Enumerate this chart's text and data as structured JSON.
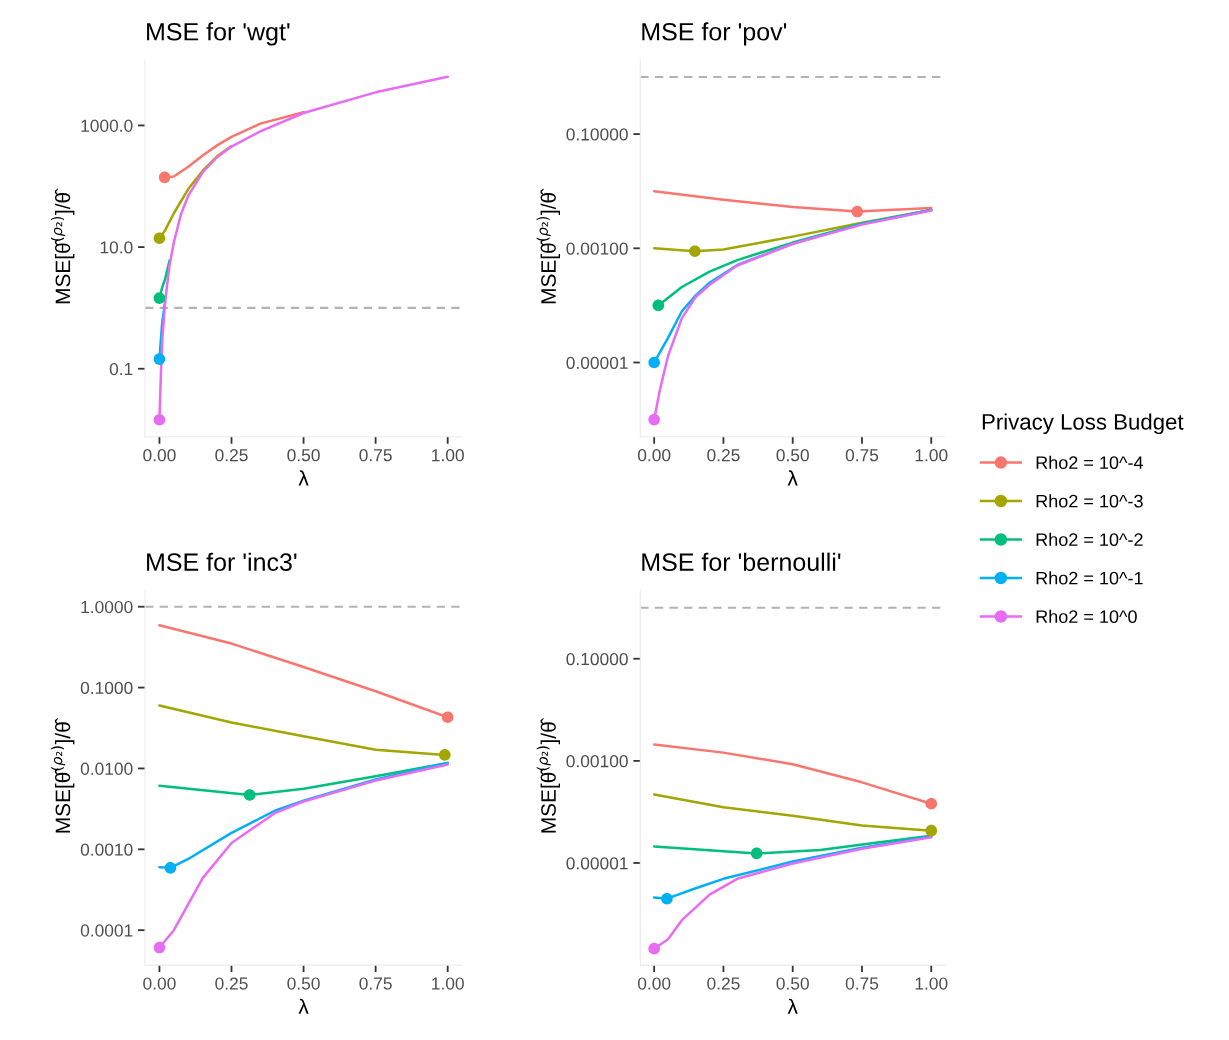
{
  "chart_data": [
    {
      "type": "line",
      "title": "MSE for 'wgt'",
      "xlabel": "λ",
      "ylabel": "MSE[θ̂$^{(ρ₂)}$]/θ̂",
      "log": "y",
      "grid": false,
      "xlim": [
        -0.05,
        1.05
      ],
      "xticks": [
        {
          "value": 0,
          "label": "0.00"
        },
        {
          "value": 0.25,
          "label": "0.25"
        },
        {
          "value": 0.5,
          "label": "0.50"
        },
        {
          "value": 0.75,
          "label": "0.75"
        },
        {
          "value": 1,
          "label": "1.00"
        }
      ],
      "ylim": [
        0.0076,
        12000
      ],
      "yticks": [
        {
          "value": 1000,
          "label": "1000.0"
        },
        {
          "value": 10,
          "label": "10.0"
        },
        0.1
      ],
      "ref_lines": [
        {
          "axis": "y",
          "value": 1,
          "color": "#b3b3b3",
          "line_style": "dashed"
        }
      ],
      "series": [
        {
          "color": "#f8766d",
          "x": [
            0.018,
            0.05,
            0.1,
            0.15,
            0.2,
            0.25,
            0.35,
            0.5
          ],
          "values": [
            140,
            145,
            210,
            320,
            470,
            650,
            1070,
            1650
          ]
        },
        {
          "color": "#a3a500",
          "x": [
            0,
            0.02,
            0.05,
            0.1,
            0.15,
            0.2,
            0.25
          ],
          "values": [
            14,
            19,
            36,
            90,
            180,
            310,
            460
          ]
        },
        {
          "color": "#00bf7d",
          "x": [
            0,
            0.01,
            0.02,
            0.035
          ],
          "values": [
            1.45,
            2.2,
            3,
            6
          ]
        },
        {
          "color": "#00b0f6",
          "x": [
            0,
            0.005,
            0.01,
            0.02
          ],
          "values": [
            0.144,
            0.3,
            0.6,
            1.3
          ]
        },
        {
          "color": "#e76bf3",
          "x": [
            0,
            0.005,
            0.01,
            0.02,
            0.035,
            0.05,
            0.075,
            0.1,
            0.15,
            0.2,
            0.25,
            0.35,
            0.5,
            0.75,
            1
          ],
          "values": [
            0.0145,
            0.08,
            0.3,
            1.3,
            5,
            12,
            35,
            70,
            170,
            300,
            450,
            800,
            1600,
            3500,
            6300
          ]
        },
        {
          "type": "scatter",
          "marker": "circle",
          "x": [
            0.018,
            0,
            0,
            0,
            0
          ],
          "values": [
            140,
            14,
            1.45,
            0.144,
            0.0145
          ],
          "colors": [
            "#f8766d",
            "#a3a500",
            "#00bf7d",
            "#00b0f6",
            "#e76bf3"
          ]
        }
      ]
    },
    {
      "type": "line",
      "title": "MSE for 'pov'",
      "xlabel": "λ",
      "ylabel": "MSE[θ̂$^{(ρ₂)}$]/θ̂",
      "log": "y",
      "grid": false,
      "legend": "right",
      "legend_title": "Privacy Loss Budget",
      "xlim": [
        -0.05,
        1.05
      ],
      "xticks": [
        {
          "value": 0,
          "label": "0.00"
        },
        {
          "value": 0.25,
          "label": "0.25"
        },
        {
          "value": 0.5,
          "label": "0.50"
        },
        {
          "value": 0.75,
          "label": "0.75"
        },
        {
          "value": 1,
          "label": "1.00"
        }
      ],
      "ylim": [
        5e-07,
        2
      ],
      "yticks": [
        {
          "value": 0.1,
          "label": "0.10000"
        },
        {
          "value": 0.001,
          "label": "0.00100"
        },
        {
          "value": 1e-05,
          "label": "0.00001"
        }
      ],
      "ref_lines": [
        {
          "axis": "y",
          "value": 1,
          "color": "#b3b3b3",
          "line_style": "dashed"
        }
      ],
      "series": [
        {
          "name": "Rho2 = 10^-4",
          "color": "#f8766d",
          "x": [
            0,
            0.25,
            0.5,
            0.733,
            1
          ],
          "values": [
            0.01,
            0.0071,
            0.0053,
            0.0044,
            0.0051
          ]
        },
        {
          "name": "Rho2 = 10^-3",
          "color": "#a3a500",
          "x": [
            0,
            0.147,
            0.25,
            0.5,
            0.75,
            1
          ],
          "values": [
            0.001,
            0.00089,
            0.00095,
            0.0016,
            0.0028,
            0.0047
          ]
        },
        {
          "name": "Rho2 = 10^-2",
          "color": "#00bf7d",
          "x": [
            0.015,
            0.1,
            0.2,
            0.3,
            0.5,
            0.75,
            1
          ],
          "values": [
            0.0001,
            0.00021,
            0.00039,
            0.00062,
            0.00126,
            0.0027,
            0.0047
          ]
        },
        {
          "name": "Rho2 = 10^-1",
          "color": "#00b0f6",
          "x": [
            0,
            0.05,
            0.1,
            0.15,
            0.2,
            0.3,
            0.5,
            0.75,
            1
          ],
          "values": [
            1e-05,
            2.7e-05,
            7.9e-05,
            0.00015,
            0.00025,
            0.00051,
            0.0012,
            0.0027,
            0.0047
          ]
        },
        {
          "name": "Rho2 = 10^0",
          "color": "#e76bf3",
          "x": [
            0,
            0.02,
            0.05,
            0.1,
            0.15,
            0.2,
            0.3,
            0.5,
            0.75,
            1
          ],
          "values": [
            1e-06,
            3.2e-06,
            1.3e-05,
            6e-05,
            0.00014,
            0.00023,
            0.0005,
            0.0012,
            0.0026,
            0.0046
          ]
        },
        {
          "type": "scatter",
          "marker": "circle",
          "x": [
            0.733,
            0.147,
            0.015,
            0,
            0
          ],
          "values": [
            0.0044,
            0.00089,
            0.0001,
            1e-05,
            1e-06
          ],
          "colors": [
            "#f8766d",
            "#a3a500",
            "#00bf7d",
            "#00b0f6",
            "#e76bf3"
          ]
        }
      ]
    },
    {
      "type": "line",
      "title": "MSE for 'inc3'",
      "xlabel": "λ",
      "ylabel": "MSE[θ̂$^{(ρ₂)}$]/θ̂",
      "log": "y",
      "grid": false,
      "xlim": [
        -0.05,
        1.05
      ],
      "xticks": [
        {
          "value": 0,
          "label": "0.00"
        },
        {
          "value": 0.25,
          "label": "0.25"
        },
        {
          "value": 0.5,
          "label": "0.50"
        },
        {
          "value": 0.75,
          "label": "0.75"
        },
        {
          "value": 1,
          "label": "1.00"
        }
      ],
      "ylim": [
        3.7e-05,
        1.6
      ],
      "yticks": [
        {
          "value": 1,
          "label": "1.0000"
        },
        {
          "value": 0.1,
          "label": "0.1000"
        },
        {
          "value": 0.01,
          "label": "0.0100"
        },
        {
          "value": 0.001,
          "label": "0.0010"
        },
        {
          "value": 0.0001,
          "label": "0.0001"
        }
      ],
      "ref_lines": [
        {
          "axis": "y",
          "value": 1,
          "color": "#b3b3b3",
          "line_style": "dashed"
        }
      ],
      "series": [
        {
          "color": "#f8766d",
          "x": [
            0,
            0.25,
            0.5,
            0.75,
            1
          ],
          "values": [
            0.59,
            0.35,
            0.18,
            0.09,
            0.043
          ]
        },
        {
          "color": "#a3a500",
          "x": [
            0,
            0.25,
            0.5,
            0.75,
            0.99
          ],
          "values": [
            0.06,
            0.037,
            0.025,
            0.017,
            0.0147
          ]
        },
        {
          "color": "#00bf7d",
          "x": [
            0,
            0.313,
            0.5,
            0.75,
            1
          ],
          "values": [
            0.0061,
            0.0047,
            0.0056,
            0.008,
            0.0117
          ]
        },
        {
          "color": "#00b0f6",
          "x": [
            0,
            0.038,
            0.1,
            0.25,
            0.4,
            0.5,
            0.75,
            1
          ],
          "values": [
            0.0006,
            0.00059,
            0.00076,
            0.0016,
            0.003,
            0.004,
            0.0073,
            0.0117
          ]
        },
        {
          "color": "#e76bf3",
          "x": [
            0,
            0.05,
            0.1,
            0.15,
            0.25,
            0.4,
            0.5,
            0.75,
            1
          ],
          "values": [
            6.1e-05,
            0.0001,
            0.00021,
            0.00044,
            0.0012,
            0.0028,
            0.0039,
            0.0071,
            0.0112
          ]
        },
        {
          "type": "scatter",
          "marker": "circle",
          "x": [
            1,
            0.99,
            0.313,
            0.038,
            0
          ],
          "values": [
            0.043,
            0.0147,
            0.0047,
            0.00059,
            6.1e-05
          ],
          "colors": [
            "#f8766d",
            "#a3a500",
            "#00bf7d",
            "#00b0f6",
            "#e76bf3"
          ]
        }
      ]
    },
    {
      "type": "line",
      "title": "MSE for 'bernoulli'",
      "xlabel": "λ",
      "ylabel": "MSE[θ̂$^{(ρ₂)}$]/θ̂",
      "log": "y",
      "grid": false,
      "xlim": [
        -0.05,
        1.05
      ],
      "xticks": [
        {
          "value": 0,
          "label": "0.00"
        },
        {
          "value": 0.25,
          "label": "0.25"
        },
        {
          "value": 0.5,
          "label": "0.50"
        },
        {
          "value": 0.75,
          "label": "0.75"
        },
        {
          "value": 1,
          "label": "1.00"
        }
      ],
      "ylim": [
        1e-07,
        2.2
      ],
      "yticks": [
        {
          "value": 0.1,
          "label": "0.10000"
        },
        {
          "value": 0.001,
          "label": "0.00100"
        },
        {
          "value": 1e-05,
          "label": "0.00001"
        }
      ],
      "ref_lines": [
        {
          "axis": "y",
          "value": 1,
          "color": "#b3b3b3",
          "line_style": "dashed"
        }
      ],
      "series": [
        {
          "color": "#f8766d",
          "x": [
            0,
            0.25,
            0.5,
            0.75,
            1
          ],
          "values": [
            0.0021,
            0.00145,
            0.00086,
            0.00038,
            0.000145
          ]
        },
        {
          "color": "#a3a500",
          "x": [
            0,
            0.25,
            0.5,
            0.75,
            1
          ],
          "values": [
            0.00022,
            0.000123,
            8.4e-05,
            5.4e-05,
            4.3e-05
          ]
        },
        {
          "color": "#00bf7d",
          "x": [
            0,
            0.37,
            0.6,
            0.8,
            1
          ],
          "values": [
            2.1e-05,
            1.54e-05,
            1.8e-05,
            2.5e-05,
            3.4e-05
          ]
        },
        {
          "color": "#00b0f6",
          "x": [
            0,
            0.046,
            0.15,
            0.25,
            0.5,
            0.75,
            1
          ],
          "values": [
            2.1e-06,
            2e-06,
            3.2e-06,
            4.9e-06,
            1.07e-05,
            2e-05,
            3.3e-05
          ]
        },
        {
          "color": "#e76bf3",
          "x": [
            0,
            0.05,
            0.1,
            0.2,
            0.3,
            0.5,
            0.75,
            1
          ],
          "values": [
            2.1e-07,
            3.2e-07,
            7.6e-07,
            2.4e-06,
            4.9e-06,
            9.8e-06,
            1.9e-05,
            3.2e-05
          ]
        },
        {
          "type": "scatter",
          "marker": "circle",
          "x": [
            1,
            1,
            0.37,
            0.046,
            0
          ],
          "values": [
            0.000145,
            4.3e-05,
            1.54e-05,
            2e-06,
            2.1e-07
          ],
          "colors": [
            "#f8766d",
            "#a3a500",
            "#00bf7d",
            "#00b0f6",
            "#e76bf3"
          ]
        }
      ]
    }
  ]
}
